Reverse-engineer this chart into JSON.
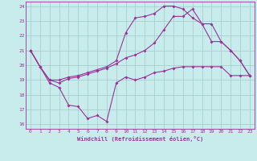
{
  "xlabel": "Windchill (Refroidissement éolien,°C)",
  "background_color": "#c8ecec",
  "grid_color": "#a0c8c8",
  "line_color": "#993399",
  "xlim": [
    -0.5,
    23.5
  ],
  "ylim": [
    15.7,
    24.3
  ],
  "xticks": [
    0,
    1,
    2,
    3,
    4,
    5,
    6,
    7,
    8,
    9,
    10,
    11,
    12,
    13,
    14,
    15,
    16,
    17,
    18,
    19,
    20,
    21,
    22,
    23
  ],
  "yticks": [
    16,
    17,
    18,
    19,
    20,
    21,
    22,
    23,
    24
  ],
  "line1_x": [
    0,
    1,
    2,
    3,
    4,
    5,
    6,
    7,
    8,
    9,
    10,
    11,
    12,
    13,
    14,
    15,
    16,
    17,
    18,
    19,
    20,
    21,
    22,
    23
  ],
  "line1_y": [
    21.0,
    19.9,
    18.8,
    18.5,
    17.3,
    17.2,
    16.4,
    16.6,
    16.2,
    18.8,
    19.2,
    19.0,
    19.2,
    19.5,
    19.6,
    19.8,
    19.9,
    19.9,
    19.9,
    19.9,
    19.9,
    19.3,
    19.3,
    19.3
  ],
  "line2_x": [
    0,
    1,
    2,
    3,
    4,
    5,
    6,
    7,
    8,
    9,
    10,
    11,
    12,
    13,
    14,
    15,
    16,
    17,
    18,
    19,
    20,
    21,
    22,
    23
  ],
  "line2_y": [
    21.0,
    19.9,
    19.0,
    18.8,
    19.1,
    19.2,
    19.4,
    19.6,
    19.8,
    20.1,
    20.5,
    20.7,
    21.0,
    21.5,
    22.4,
    23.3,
    23.3,
    23.8,
    22.8,
    22.8,
    21.6,
    21.0,
    20.3,
    19.3
  ],
  "line3_x": [
    0,
    1,
    2,
    3,
    4,
    5,
    6,
    7,
    8,
    9,
    10,
    11,
    12,
    13,
    14,
    15,
    16,
    17,
    18,
    19,
    20,
    21,
    22,
    23
  ],
  "line3_y": [
    21.0,
    19.9,
    19.0,
    19.0,
    19.2,
    19.3,
    19.5,
    19.7,
    19.9,
    20.3,
    22.2,
    23.2,
    23.3,
    23.5,
    24.0,
    24.0,
    23.8,
    23.2,
    22.8,
    21.6,
    21.6,
    21.0,
    20.3,
    19.3
  ]
}
